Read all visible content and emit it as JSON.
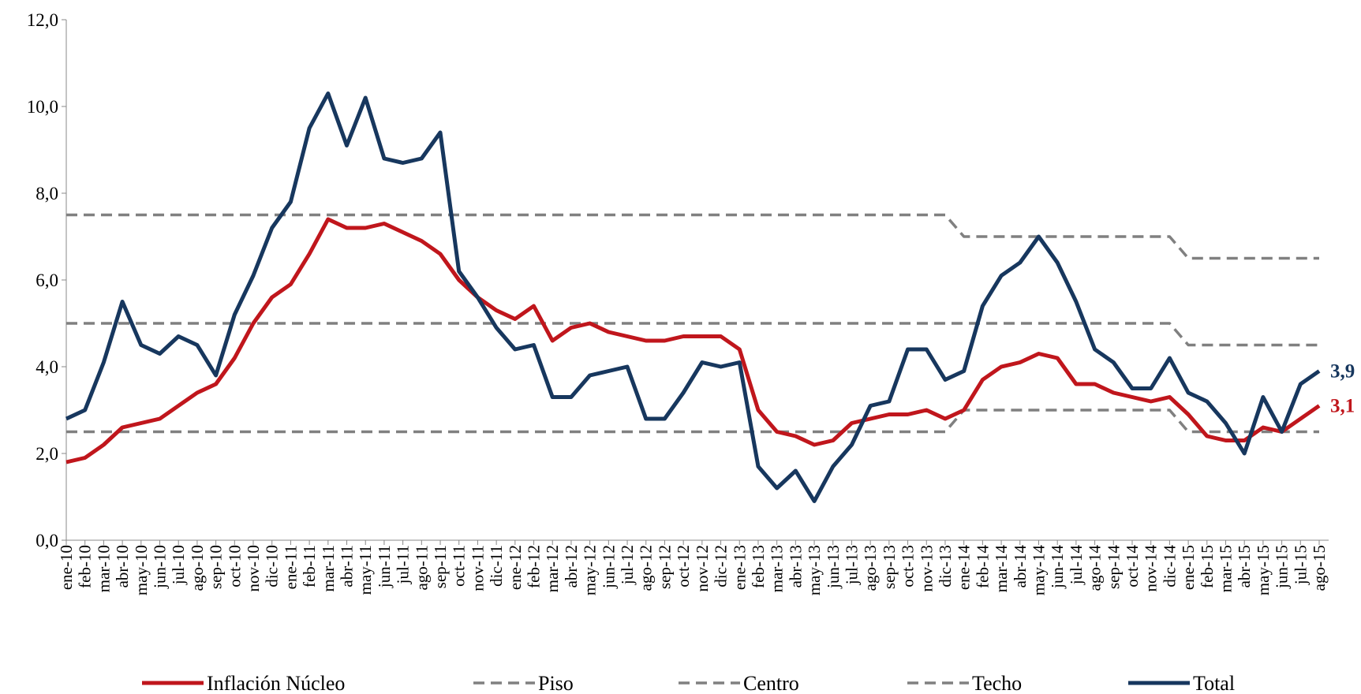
{
  "chart_data": {
    "type": "line",
    "categories": [
      "ene-10",
      "feb-10",
      "mar-10",
      "abr-10",
      "may-10",
      "jun-10",
      "jul-10",
      "ago-10",
      "sep-10",
      "oct-10",
      "nov-10",
      "dic-10",
      "ene-11",
      "feb-11",
      "mar-11",
      "abr-11",
      "may-11",
      "jun-11",
      "jul-11",
      "ago-11",
      "sep-11",
      "oct-11",
      "nov-11",
      "dic-11",
      "ene-12",
      "feb-12",
      "mar-12",
      "abr-12",
      "may-12",
      "jun-12",
      "jul-12",
      "ago-12",
      "sep-12",
      "oct-12",
      "nov-12",
      "dic-12",
      "ene-13",
      "feb-13",
      "mar-13",
      "abr-13",
      "may-13",
      "jun-13",
      "jul-13",
      "ago-13",
      "sep-13",
      "oct-13",
      "nov-13",
      "dic-13",
      "ene-14",
      "feb-14",
      "mar-14",
      "abr-14",
      "may-14",
      "jun-14",
      "jul-14",
      "ago-14",
      "sep-14",
      "oct-14",
      "nov-14",
      "dic-14",
      "ene-15",
      "feb-15",
      "mar-15",
      "abr-15",
      "may-15",
      "jun-15",
      "jul-15",
      "ago-15"
    ],
    "series": [
      {
        "name": "Inflación Núcleo",
        "color": "#c0161c",
        "dash": false,
        "values": [
          1.8,
          1.9,
          2.2,
          2.6,
          2.7,
          2.8,
          3.1,
          3.4,
          3.6,
          4.2,
          5.0,
          5.6,
          5.9,
          6.6,
          7.4,
          7.2,
          7.2,
          7.3,
          7.1,
          6.9,
          6.6,
          6.0,
          5.6,
          5.3,
          5.1,
          5.4,
          4.6,
          4.9,
          5.0,
          4.8,
          4.7,
          4.6,
          4.6,
          4.7,
          4.7,
          4.7,
          4.4,
          3.0,
          2.5,
          2.4,
          2.2,
          2.3,
          2.7,
          2.8,
          2.9,
          2.9,
          3.0,
          2.8,
          3.0,
          3.7,
          4.0,
          4.1,
          4.3,
          4.2,
          3.6,
          3.6,
          3.4,
          3.3,
          3.2,
          3.3,
          2.9,
          2.4,
          2.3,
          2.3,
          2.6,
          2.5,
          2.8,
          3.1
        ],
        "value_labels": [
          null,
          null,
          null,
          null,
          null,
          null,
          null,
          null,
          null,
          null,
          null,
          null,
          null,
          null,
          null,
          null,
          null,
          null,
          null,
          null,
          null,
          null,
          null,
          null,
          null,
          null,
          null,
          null,
          null,
          null,
          null,
          null,
          null,
          null,
          null,
          null,
          null,
          null,
          null,
          null,
          null,
          null,
          null,
          null,
          null,
          null,
          null,
          null,
          null,
          null,
          null,
          null,
          null,
          null,
          null,
          null,
          null,
          null,
          null,
          null,
          null,
          null,
          null,
          null,
          null,
          null,
          null,
          "3,1"
        ]
      },
      {
        "name": "Piso",
        "color": "#808080",
        "dash": true,
        "values": [
          2.5,
          2.5,
          2.5,
          2.5,
          2.5,
          2.5,
          2.5,
          2.5,
          2.5,
          2.5,
          2.5,
          2.5,
          2.5,
          2.5,
          2.5,
          2.5,
          2.5,
          2.5,
          2.5,
          2.5,
          2.5,
          2.5,
          2.5,
          2.5,
          2.5,
          2.5,
          2.5,
          2.5,
          2.5,
          2.5,
          2.5,
          2.5,
          2.5,
          2.5,
          2.5,
          2.5,
          2.5,
          2.5,
          2.5,
          2.5,
          2.5,
          2.5,
          2.5,
          2.5,
          2.5,
          2.5,
          2.5,
          2.5,
          3.0,
          3.0,
          3.0,
          3.0,
          3.0,
          3.0,
          3.0,
          3.0,
          3.0,
          3.0,
          3.0,
          3.0,
          2.5,
          2.5,
          2.5,
          2.5,
          2.5,
          2.5,
          2.5,
          2.5
        ]
      },
      {
        "name": "Centro",
        "color": "#808080",
        "dash": true,
        "values": [
          5.0,
          5.0,
          5.0,
          5.0,
          5.0,
          5.0,
          5.0,
          5.0,
          5.0,
          5.0,
          5.0,
          5.0,
          5.0,
          5.0,
          5.0,
          5.0,
          5.0,
          5.0,
          5.0,
          5.0,
          5.0,
          5.0,
          5.0,
          5.0,
          5.0,
          5.0,
          5.0,
          5.0,
          5.0,
          5.0,
          5.0,
          5.0,
          5.0,
          5.0,
          5.0,
          5.0,
          5.0,
          5.0,
          5.0,
          5.0,
          5.0,
          5.0,
          5.0,
          5.0,
          5.0,
          5.0,
          5.0,
          5.0,
          5.0,
          5.0,
          5.0,
          5.0,
          5.0,
          5.0,
          5.0,
          5.0,
          5.0,
          5.0,
          5.0,
          5.0,
          4.5,
          4.5,
          4.5,
          4.5,
          4.5,
          4.5,
          4.5,
          4.5
        ]
      },
      {
        "name": "Techo",
        "color": "#808080",
        "dash": true,
        "values": [
          7.5,
          7.5,
          7.5,
          7.5,
          7.5,
          7.5,
          7.5,
          7.5,
          7.5,
          7.5,
          7.5,
          7.5,
          7.5,
          7.5,
          7.5,
          7.5,
          7.5,
          7.5,
          7.5,
          7.5,
          7.5,
          7.5,
          7.5,
          7.5,
          7.5,
          7.5,
          7.5,
          7.5,
          7.5,
          7.5,
          7.5,
          7.5,
          7.5,
          7.5,
          7.5,
          7.5,
          7.5,
          7.5,
          7.5,
          7.5,
          7.5,
          7.5,
          7.5,
          7.5,
          7.5,
          7.5,
          7.5,
          7.5,
          7.0,
          7.0,
          7.0,
          7.0,
          7.0,
          7.0,
          7.0,
          7.0,
          7.0,
          7.0,
          7.0,
          7.0,
          6.5,
          6.5,
          6.5,
          6.5,
          6.5,
          6.5,
          6.5,
          6.5
        ]
      },
      {
        "name": "Total",
        "color": "#17375e",
        "dash": false,
        "values": [
          2.8,
          3.0,
          4.1,
          5.5,
          4.5,
          4.3,
          4.7,
          4.5,
          3.8,
          5.2,
          6.1,
          7.2,
          7.8,
          9.5,
          10.3,
          9.1,
          10.2,
          8.8,
          8.7,
          8.8,
          9.4,
          6.2,
          5.6,
          4.9,
          4.4,
          4.5,
          3.3,
          3.3,
          3.8,
          3.9,
          4.0,
          2.8,
          2.8,
          3.4,
          4.1,
          4.0,
          4.1,
          1.7,
          1.2,
          1.6,
          0.9,
          1.7,
          2.2,
          3.1,
          3.2,
          4.4,
          4.4,
          3.7,
          3.9,
          5.4,
          6.1,
          6.4,
          7.0,
          6.4,
          5.5,
          4.4,
          4.1,
          3.5,
          3.5,
          4.2,
          3.4,
          3.2,
          2.7,
          2.0,
          3.3,
          2.5,
          3.6,
          3.9
        ],
        "value_labels": [
          null,
          null,
          null,
          null,
          null,
          null,
          null,
          null,
          null,
          null,
          null,
          null,
          null,
          null,
          null,
          null,
          null,
          null,
          null,
          null,
          null,
          null,
          null,
          null,
          null,
          null,
          null,
          null,
          null,
          null,
          null,
          null,
          null,
          null,
          null,
          null,
          null,
          null,
          null,
          null,
          null,
          null,
          null,
          null,
          null,
          null,
          null,
          null,
          null,
          null,
          null,
          null,
          null,
          null,
          null,
          null,
          null,
          null,
          null,
          null,
          null,
          null,
          null,
          null,
          null,
          null,
          null,
          "3,9"
        ]
      }
    ],
    "ylim": [
      0,
      12
    ],
    "yticks": [
      {
        "value": 0,
        "label": "0,0"
      },
      {
        "value": 2,
        "label": "2,0"
      },
      {
        "value": 4,
        "label": "4,0"
      },
      {
        "value": 6,
        "label": "6,0"
      },
      {
        "value": 8,
        "label": "8,0"
      },
      {
        "value": 10,
        "label": "10,0"
      },
      {
        "value": 12,
        "label": "12,0"
      }
    ],
    "grid": false,
    "legend": "bottom"
  }
}
